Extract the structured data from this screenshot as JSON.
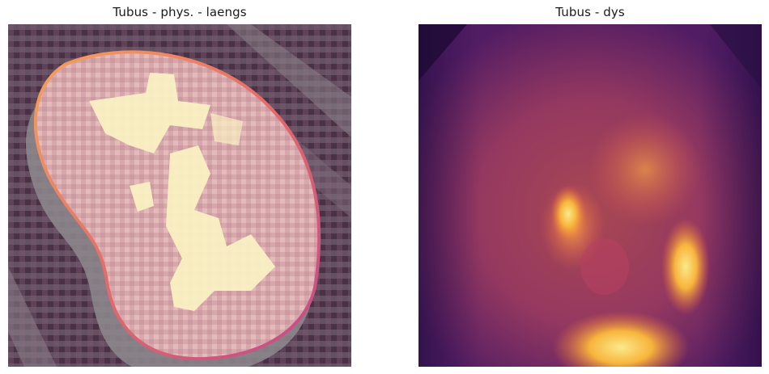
{
  "panels": [
    {
      "title": "Tubus - phys. - laengs",
      "image": "grayscale-histology-with-segmentation-overlay",
      "colors": {
        "background": "#5b3e55",
        "overlay": "#e7b9b6",
        "highlight": "#fbf2c3",
        "contour": "#f0905a"
      }
    },
    {
      "title": "Tubus - dys",
      "image": "inferno-heatmap-overlay",
      "colors": {
        "dark": "#2d0f4a",
        "mid": "#c94b57",
        "bright": "#f9e27a"
      }
    }
  ]
}
